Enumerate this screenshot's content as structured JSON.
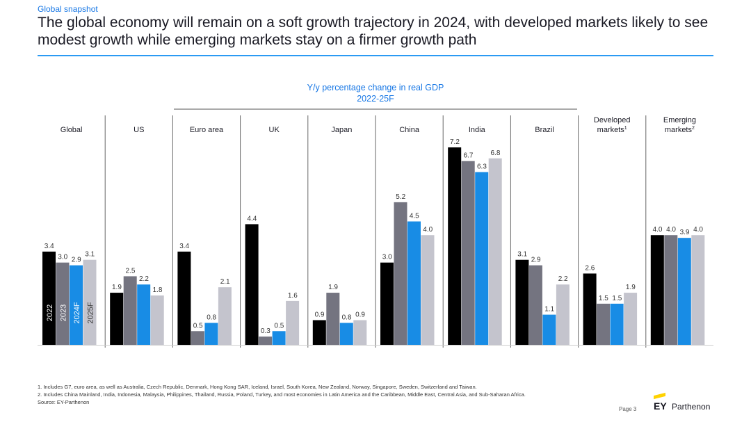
{
  "header": {
    "section": "Global snapshot",
    "title": "The global economy will remain on a soft growth trajectory in 2024, with developed markets likely to see modest growth while emerging markets stay on a firmer growth path"
  },
  "chart_data": {
    "type": "bar",
    "title": "Y/y percentage change in real GDP",
    "subtitle": "2022-25F",
    "series_labels": [
      "2022",
      "2023",
      "2024F",
      "2025F"
    ],
    "colors": {
      "2022": "#000000",
      "2023": "#747480",
      "2024F": "#188ce5",
      "2025F": "#c4c4cd"
    },
    "groups": [
      {
        "name": "Global",
        "values": [
          3.4,
          3.0,
          2.9,
          3.1
        ]
      },
      {
        "name": "US",
        "values": [
          1.9,
          2.5,
          2.2,
          1.8
        ]
      },
      {
        "name": "Euro area",
        "values": [
          3.4,
          0.5,
          0.8,
          2.1
        ]
      },
      {
        "name": "UK",
        "values": [
          4.4,
          0.3,
          0.5,
          1.6
        ]
      },
      {
        "name": "Japan",
        "values": [
          0.9,
          1.9,
          0.8,
          0.9
        ]
      },
      {
        "name": "China",
        "values": [
          3.0,
          5.2,
          4.5,
          4.0
        ]
      },
      {
        "name": "India",
        "values": [
          7.2,
          6.7,
          6.3,
          6.8
        ]
      },
      {
        "name": "Brazil",
        "values": [
          3.1,
          2.9,
          1.1,
          2.2
        ]
      },
      {
        "name": "Developed markets",
        "name_lines": [
          "Developed",
          "markets"
        ],
        "sup": "1",
        "values": [
          2.6,
          1.5,
          1.5,
          1.9
        ]
      },
      {
        "name": "Emerging markets",
        "name_lines": [
          "Emerging",
          "markets"
        ],
        "sup": "2",
        "values": [
          4.0,
          4.0,
          3.9,
          4.0
        ]
      }
    ],
    "ylim": [
      0,
      7.2
    ]
  },
  "footnotes": [
    "1.   Includes G7, euro area, as well as Australia, Czech Republic, Denmark, Hong Kong SAR, Iceland, Israel, South Korea, New Zealand, Norway, Singapore, Sweden, Switzerland and Taiwan.",
    "2.   Includes China Mainland, India, Indonesia, Malaysia, Philippines, Thailand, Russia, Poland, Turkey, and most economies in Latin America and the Caribbean, Middle East, Central Asia, and Sub-Saharan Africa."
  ],
  "source": "Source: EY-Parthenon",
  "page": "Page 3",
  "logo": {
    "mark": "EY",
    "name": "Parthenon"
  }
}
